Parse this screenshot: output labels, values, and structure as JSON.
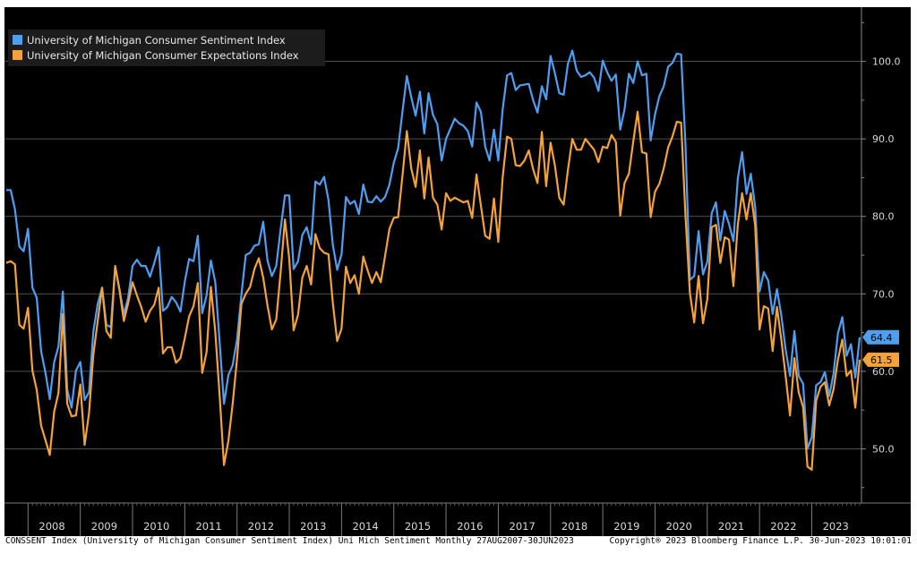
{
  "chart_data": {
    "type": "line",
    "title": "",
    "xlabel": "",
    "ylabel": "",
    "ylim": [
      43,
      107
    ],
    "yticks": [
      50,
      60,
      70,
      80,
      90,
      100
    ],
    "ytick_labels": [
      "50.0",
      "60.0",
      "70.0",
      "80.0",
      "90.0",
      "100.0"
    ],
    "xtick_labels": [
      "2008",
      "2009",
      "2010",
      "2011",
      "2012",
      "2013",
      "2014",
      "2015",
      "2016",
      "2017",
      "2018",
      "2019",
      "2020",
      "2021",
      "2022",
      "2023"
    ],
    "x_start": "2007-08",
    "x_end": "2023-06",
    "grid": true,
    "legend_position": "top-left",
    "series": [
      {
        "name": "University of Michigan Consumer Sentiment Index",
        "color": "#4f9ef0",
        "last_value_label": "64.4",
        "values": [
          83.4,
          83.4,
          80.9,
          76.1,
          75.5,
          78.4,
          70.8,
          69.5,
          62.6,
          59.8,
          56.4,
          61.2,
          63.2,
          70.3,
          57.6,
          55.3,
          60.1,
          61.2,
          56.3,
          57.3,
          65.1,
          68.7,
          70.8,
          66.0,
          65.7,
          73.5,
          70.6,
          67.4,
          69.5,
          73.6,
          74.4,
          73.6,
          73.6,
          72.2,
          74.0,
          76.0,
          67.8,
          68.3,
          69.6,
          68.9,
          67.7,
          71.6,
          74.5,
          74.2,
          77.5,
          67.5,
          69.8,
          74.3,
          71.5,
          63.7,
          55.8,
          59.5,
          60.8,
          64.1,
          69.9,
          75.0,
          75.3,
          76.2,
          76.4,
          79.3,
          74.3,
          72.3,
          73.6,
          78.3,
          82.7,
          82.7,
          73.2,
          74.2,
          77.6,
          78.6,
          76.4,
          84.5,
          84.1,
          85.1,
          82.1,
          76.3,
          73.1,
          75.1,
          82.5,
          81.6,
          82.0,
          80.3,
          84.1,
          81.9,
          81.8,
          82.6,
          81.9,
          82.5,
          84.1,
          86.9,
          88.8,
          93.6,
          98.1,
          95.4,
          93.0,
          96.1,
          90.7,
          95.9,
          93.1,
          91.9,
          87.2,
          90.0,
          91.3,
          92.6,
          92.0,
          91.7,
          91.0,
          89.0,
          94.7,
          93.5,
          89.0,
          87.2,
          91.2,
          87.2,
          93.8,
          98.2,
          98.5,
          96.3,
          96.9,
          97.0,
          97.1,
          95.0,
          93.4,
          96.8,
          95.1,
          100.7,
          98.5,
          95.9,
          95.7,
          99.7,
          101.4,
          98.8,
          98.0,
          98.2,
          98.6,
          97.9,
          96.2,
          100.1,
          98.6,
          97.5,
          98.3,
          91.2,
          93.8,
          98.4,
          97.2,
          100.0,
          98.2,
          98.4,
          89.8,
          93.2,
          95.5,
          96.8,
          99.3,
          99.8,
          101.0,
          100.9,
          89.1,
          71.8,
          72.3,
          78.1,
          72.5,
          74.1,
          80.4,
          81.8,
          76.9,
          80.7,
          79.0,
          76.8,
          84.9,
          88.3,
          82.9,
          85.5,
          81.2,
          70.3,
          72.8,
          71.7,
          67.4,
          70.6,
          67.2,
          62.8,
          59.4,
          65.2,
          59.4,
          58.4,
          50.0,
          51.5,
          58.2,
          58.6,
          59.9,
          56.8,
          59.7,
          64.9,
          67.0,
          62.0,
          63.5,
          59.2,
          64.4
        ]
      },
      {
        "name": "University of Michigan Consumer Expectations Index",
        "color": "#f3a33a",
        "last_value_label": "61.5",
        "values": [
          74.0,
          74.2,
          73.8,
          66.0,
          65.5,
          68.2,
          60.1,
          57.6,
          53.0,
          51.1,
          49.2,
          54.8,
          57.2,
          67.4,
          55.8,
          54.2,
          54.3,
          58.3,
          50.5,
          54.6,
          62.1,
          66.5,
          70.8,
          65.2,
          64.3,
          73.6,
          70.5,
          66.5,
          68.8,
          71.5,
          69.8,
          68.3,
          66.4,
          67.8,
          68.6,
          70.8,
          62.3,
          63.1,
          63.1,
          61.1,
          61.7,
          64.3,
          67.1,
          68.4,
          71.4,
          59.8,
          62.5,
          70.9,
          65.1,
          56.8,
          47.9,
          51.0,
          55.8,
          61.6,
          68.7,
          70.0,
          70.9,
          73.2,
          74.6,
          72.1,
          68.5,
          65.4,
          66.7,
          72.7,
          79.6,
          74.5,
          65.3,
          67.3,
          72.1,
          73.6,
          71.2,
          77.7,
          75.9,
          75.3,
          75.1,
          68.8,
          63.9,
          65.5,
          73.5,
          71.4,
          72.4,
          70.0,
          74.8,
          73.0,
          71.4,
          72.8,
          71.5,
          74.9,
          78.4,
          79.8,
          79.9,
          85.3,
          91.0,
          86.2,
          83.8,
          88.5,
          82.3,
          87.6,
          82.4,
          81.5,
          78.3,
          83.0,
          82.0,
          82.4,
          82.1,
          81.8,
          82.0,
          79.8,
          85.4,
          81.4,
          77.5,
          77.1,
          82.3,
          76.7,
          85.0,
          90.3,
          90.0,
          86.6,
          86.5,
          87.2,
          88.5,
          86.1,
          84.3,
          90.9,
          83.9,
          89.5,
          86.6,
          82.4,
          81.5,
          86.0,
          90.0,
          88.6,
          88.6,
          90.0,
          89.3,
          88.6,
          87.0,
          89.0,
          88.8,
          90.5,
          89.6,
          80.1,
          84.3,
          85.5,
          89.7,
          93.5,
          88.3,
          88.1,
          79.9,
          83.2,
          84.2,
          86.2,
          88.9,
          90.3,
          92.2,
          92.1,
          80.0,
          70.1,
          66.3,
          72.3,
          66.2,
          69.3,
          78.6,
          78.9,
          74.0,
          77.3,
          77.0,
          71.0,
          78.9,
          83.0,
          79.6,
          83.0,
          78.8,
          65.4,
          68.4,
          68.1,
          62.6,
          68.3,
          64.1,
          59.4,
          54.3,
          61.7,
          57.3,
          55.4,
          47.7,
          47.3,
          56.2,
          58.0,
          58.6,
          55.6,
          57.7,
          61.5,
          64.1,
          59.4,
          60.1,
          55.3,
          61.5
        ]
      }
    ]
  },
  "footer": {
    "left": "CONSSENT Index (University of Michigan Consumer Sentiment Index) Uni Mich Sentiment  Monthly 27AUG2007-30JUN2023",
    "right": "Copyright® 2023 Bloomberg Finance L.P.    30-Jun-2023 10:01:01"
  }
}
